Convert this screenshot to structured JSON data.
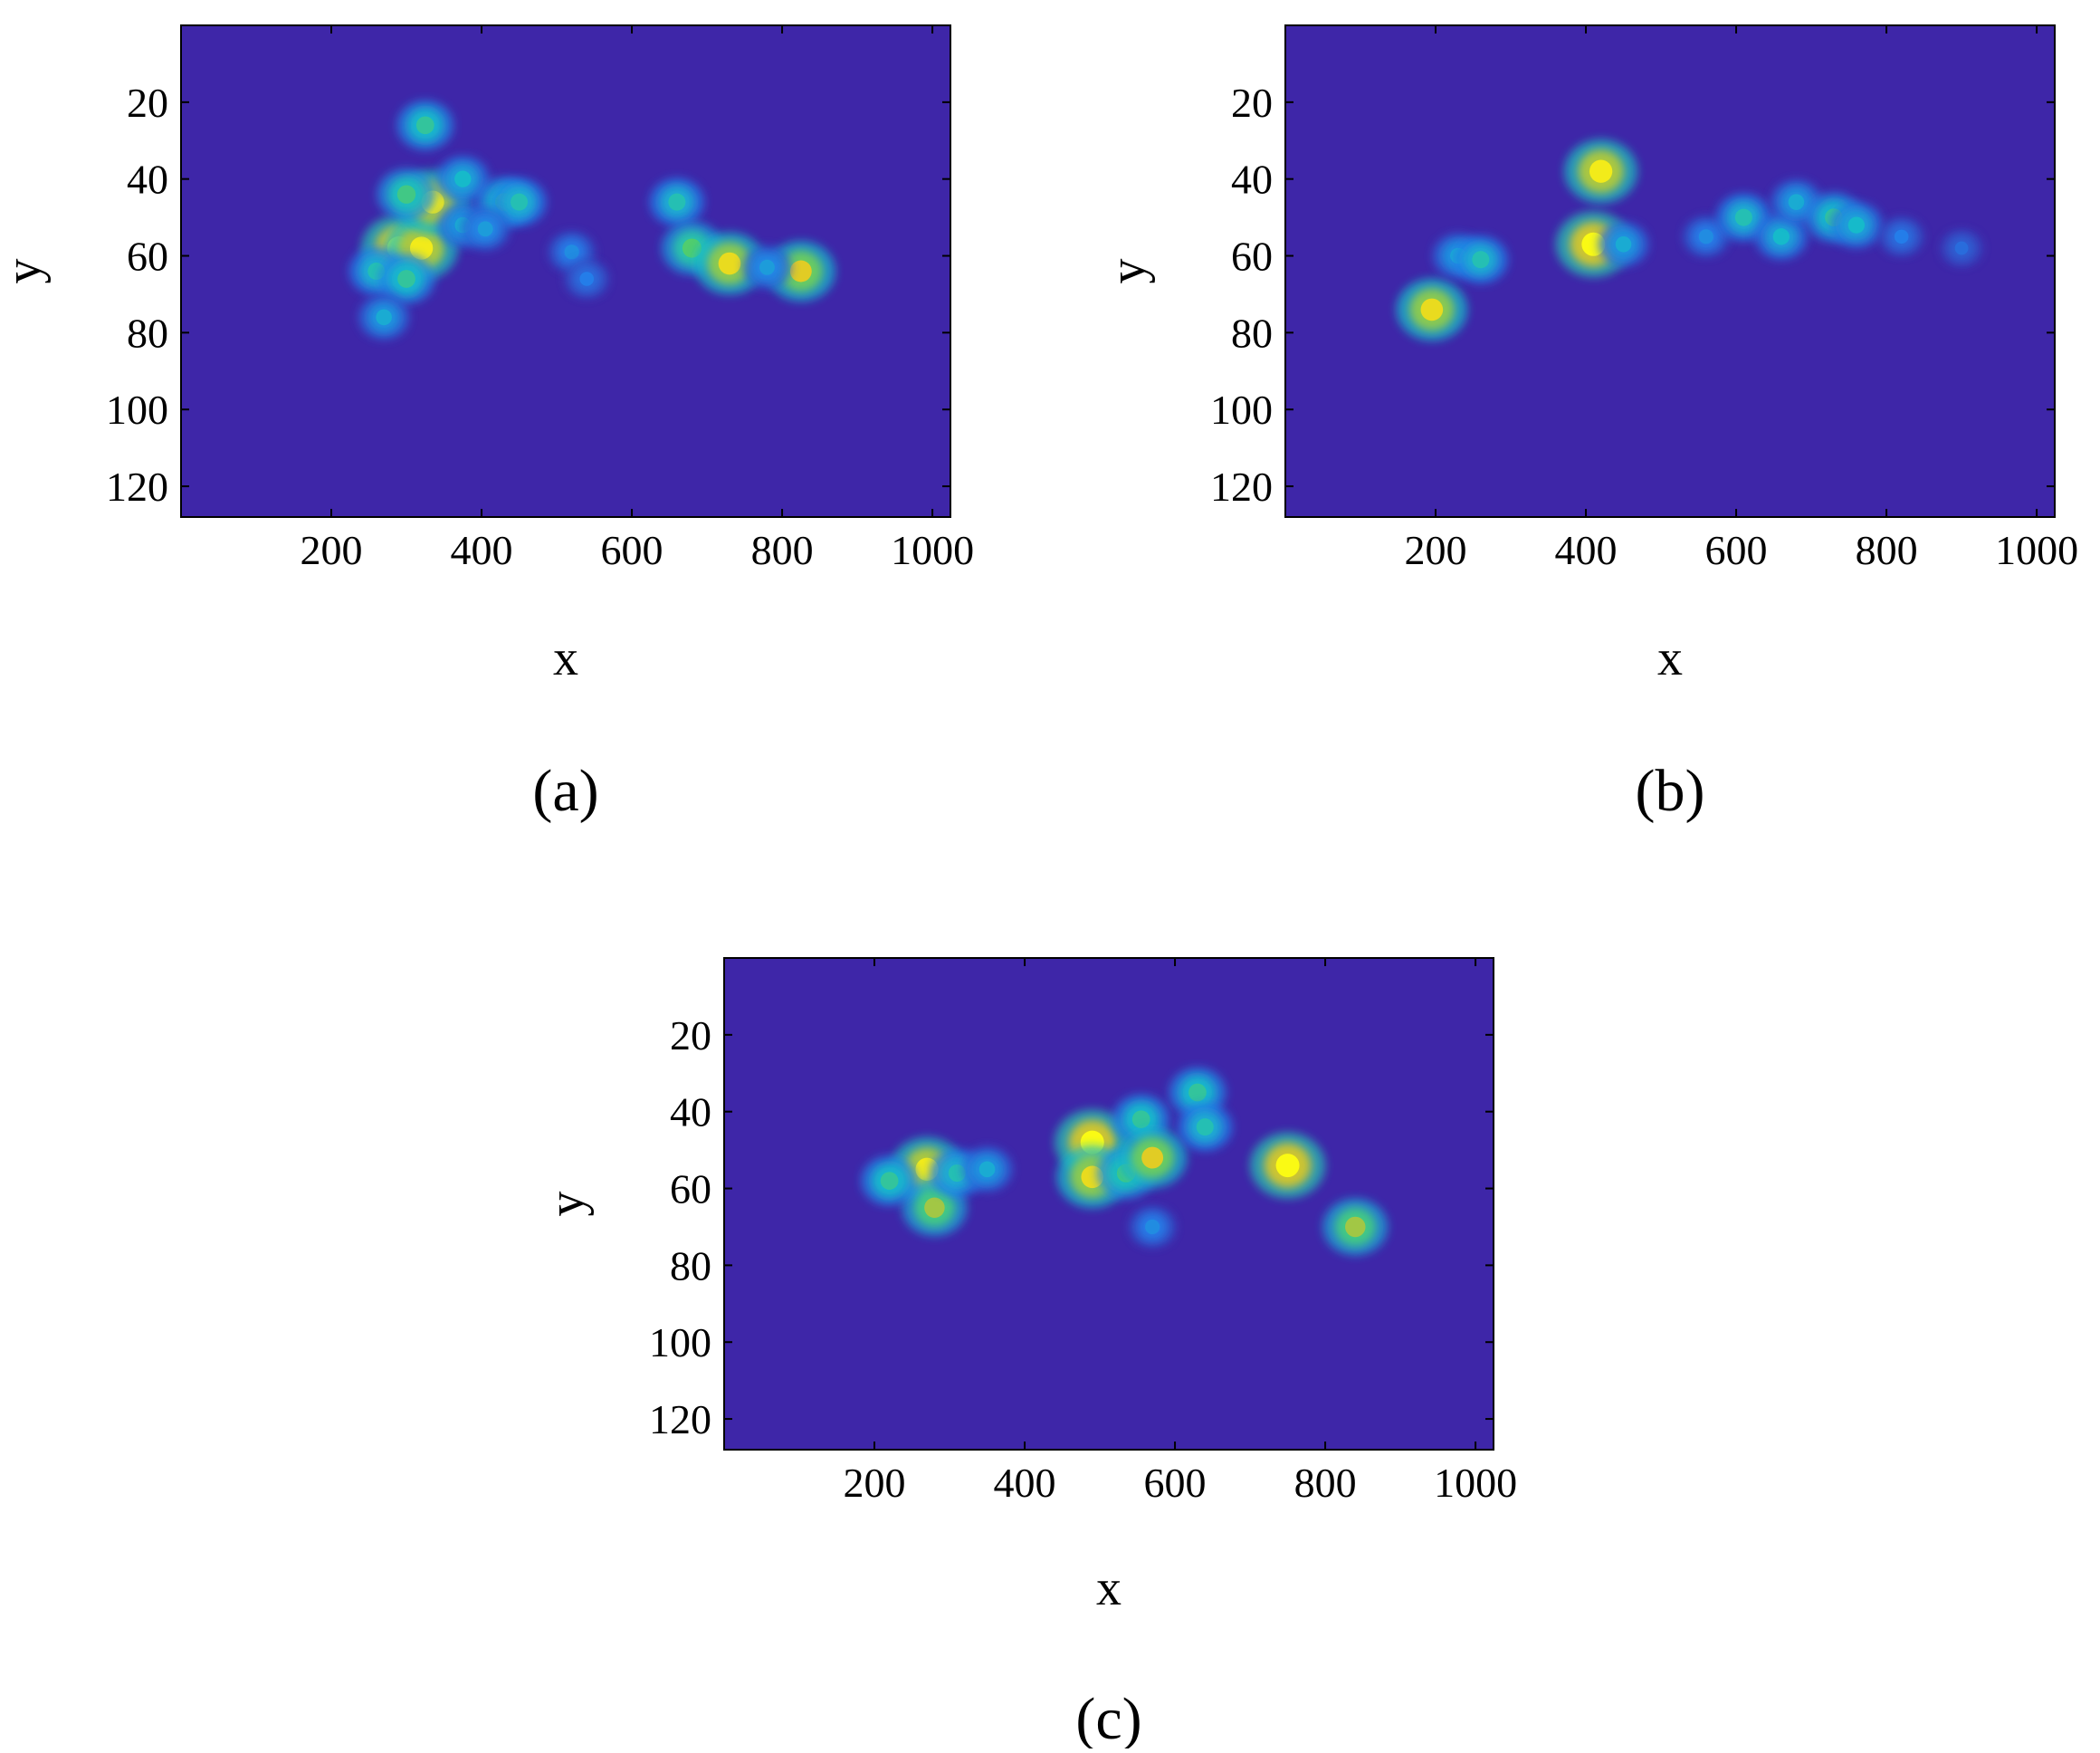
{
  "chart_data": [
    {
      "type": "heatmap",
      "caption": "(a)",
      "xlabel": "x",
      "ylabel": "y",
      "xlim": [
        0,
        1024
      ],
      "ylim": [
        128,
        0
      ],
      "y_reversed": true,
      "xticks": [
        200,
        400,
        600,
        800,
        1000
      ],
      "yticks": [
        20,
        40,
        60,
        80,
        100,
        120
      ],
      "colormap": "parula",
      "background_color": "#3e26a8",
      "grid": false,
      "legend": "none",
      "hotspots": [
        {
          "x": 290,
          "y": 58,
          "intensity": 1.0
        },
        {
          "x": 320,
          "y": 58,
          "intensity": 0.95
        },
        {
          "x": 335,
          "y": 46,
          "intensity": 0.95
        },
        {
          "x": 300,
          "y": 44,
          "intensity": 0.6
        },
        {
          "x": 325,
          "y": 26,
          "intensity": 0.55
        },
        {
          "x": 260,
          "y": 64,
          "intensity": 0.5
        },
        {
          "x": 300,
          "y": 66,
          "intensity": 0.55
        },
        {
          "x": 270,
          "y": 76,
          "intensity": 0.4
        },
        {
          "x": 375,
          "y": 40,
          "intensity": 0.45
        },
        {
          "x": 375,
          "y": 52,
          "intensity": 0.4
        },
        {
          "x": 430,
          "y": 46,
          "intensity": 0.55
        },
        {
          "x": 450,
          "y": 46,
          "intensity": 0.5
        },
        {
          "x": 405,
          "y": 53,
          "intensity": 0.35
        },
        {
          "x": 520,
          "y": 59,
          "intensity": 0.3
        },
        {
          "x": 540,
          "y": 66,
          "intensity": 0.25
        },
        {
          "x": 660,
          "y": 46,
          "intensity": 0.5
        },
        {
          "x": 680,
          "y": 58,
          "intensity": 0.65
        },
        {
          "x": 730,
          "y": 62,
          "intensity": 0.9
        },
        {
          "x": 825,
          "y": 64,
          "intensity": 0.85
        },
        {
          "x": 780,
          "y": 63,
          "intensity": 0.35
        }
      ]
    },
    {
      "type": "heatmap",
      "caption": "(b)",
      "xlabel": "x",
      "ylabel": "y",
      "xlim": [
        0,
        1024
      ],
      "ylim": [
        128,
        0
      ],
      "y_reversed": true,
      "xticks": [
        200,
        400,
        600,
        800,
        1000
      ],
      "yticks": [
        20,
        40,
        60,
        80,
        100,
        120
      ],
      "colormap": "parula",
      "background_color": "#3e26a8",
      "grid": false,
      "legend": "none",
      "hotspots": [
        {
          "x": 410,
          "y": 57,
          "intensity": 1.0
        },
        {
          "x": 420,
          "y": 38,
          "intensity": 0.95
        },
        {
          "x": 195,
          "y": 74,
          "intensity": 0.9
        },
        {
          "x": 230,
          "y": 60,
          "intensity": 0.4
        },
        {
          "x": 260,
          "y": 61,
          "intensity": 0.5
        },
        {
          "x": 450,
          "y": 57,
          "intensity": 0.4
        },
        {
          "x": 560,
          "y": 55,
          "intensity": 0.3
        },
        {
          "x": 610,
          "y": 50,
          "intensity": 0.5
        },
        {
          "x": 660,
          "y": 55,
          "intensity": 0.45
        },
        {
          "x": 680,
          "y": 46,
          "intensity": 0.4
        },
        {
          "x": 730,
          "y": 50,
          "intensity": 0.55
        },
        {
          "x": 760,
          "y": 52,
          "intensity": 0.45
        },
        {
          "x": 820,
          "y": 55,
          "intensity": 0.25
        },
        {
          "x": 900,
          "y": 58,
          "intensity": 0.2
        }
      ]
    },
    {
      "type": "heatmap",
      "caption": "(c)",
      "xlabel": "x",
      "ylabel": "y",
      "xlim": [
        0,
        1024
      ],
      "ylim": [
        128,
        0
      ],
      "y_reversed": true,
      "xticks": [
        200,
        400,
        600,
        800,
        1000
      ],
      "yticks": [
        20,
        40,
        60,
        80,
        100,
        120
      ],
      "colormap": "parula",
      "background_color": "#3e26a8",
      "grid": false,
      "legend": "none",
      "hotspots": [
        {
          "x": 270,
          "y": 55,
          "intensity": 0.95
        },
        {
          "x": 280,
          "y": 65,
          "intensity": 0.75
        },
        {
          "x": 220,
          "y": 58,
          "intensity": 0.55
        },
        {
          "x": 310,
          "y": 56,
          "intensity": 0.5
        },
        {
          "x": 350,
          "y": 55,
          "intensity": 0.4
        },
        {
          "x": 490,
          "y": 48,
          "intensity": 1.0
        },
        {
          "x": 490,
          "y": 57,
          "intensity": 0.9
        },
        {
          "x": 535,
          "y": 56,
          "intensity": 0.6
        },
        {
          "x": 555,
          "y": 42,
          "intensity": 0.55
        },
        {
          "x": 570,
          "y": 52,
          "intensity": 0.85
        },
        {
          "x": 630,
          "y": 35,
          "intensity": 0.55
        },
        {
          "x": 640,
          "y": 44,
          "intensity": 0.5
        },
        {
          "x": 570,
          "y": 70,
          "intensity": 0.3
        },
        {
          "x": 750,
          "y": 54,
          "intensity": 1.0
        },
        {
          "x": 840,
          "y": 70,
          "intensity": 0.75
        }
      ]
    }
  ]
}
